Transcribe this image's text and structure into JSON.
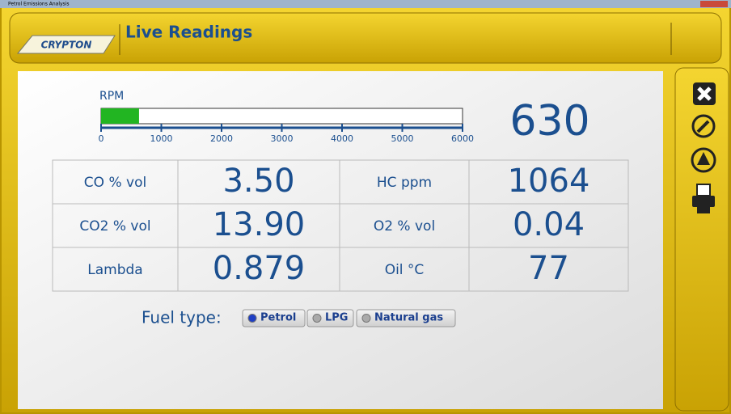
{
  "window": {
    "title": "Petrol Emissions Analysis"
  },
  "header": {
    "logo": "CRYPTON",
    "title": "Live Readings"
  },
  "rpm_gauge": {
    "label": "RPM",
    "value": 630,
    "range": [
      0,
      6000
    ],
    "ticks": [
      0,
      1000,
      2000,
      3000,
      4000,
      5000,
      6000
    ],
    "color": "#22b522"
  },
  "readings": {
    "rows": [
      [
        "CO % vol",
        "3.50",
        "HC ppm",
        "1064"
      ],
      [
        "CO2 % vol",
        "13.90",
        "O2 % vol",
        "0.04"
      ],
      [
        "Lambda",
        "0.879",
        "Oil °C",
        "77"
      ]
    ]
  },
  "fuel_type": {
    "label": "Fuel type:",
    "options": [
      "Petrol",
      "LPG",
      "Natural gas"
    ],
    "selected": 0
  }
}
